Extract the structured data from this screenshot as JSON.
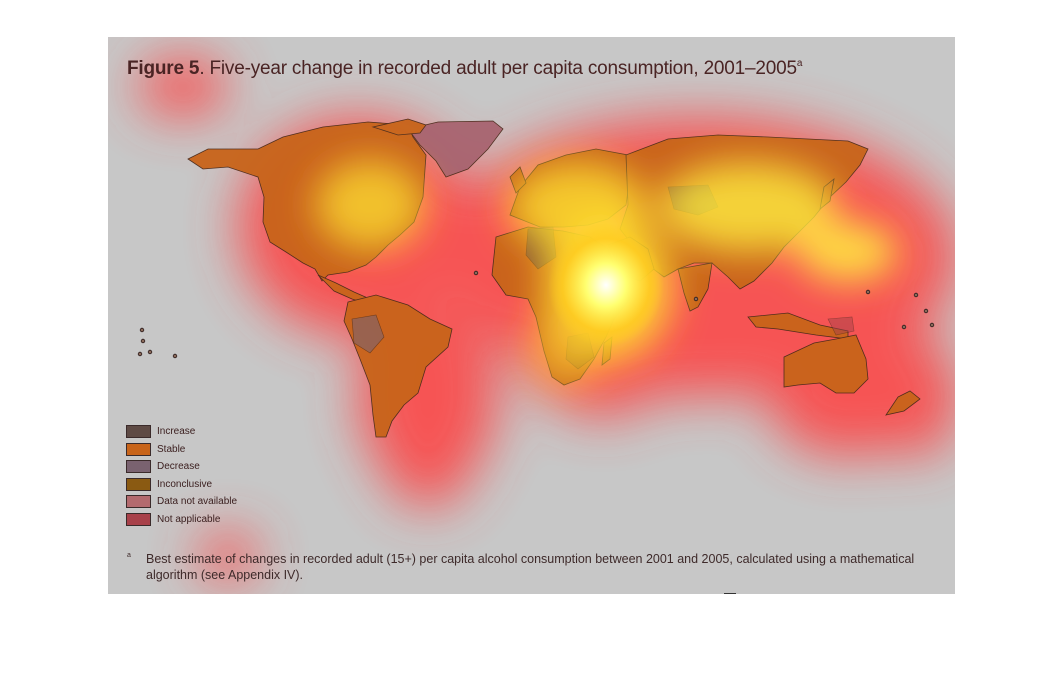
{
  "figure": {
    "title_bold": "Figure 5",
    "title_rest": ". Five-year change in recorded adult per capita consumption, 2001–2005",
    "title_superscript": "a",
    "legend": [
      {
        "label": "Increase",
        "color": "#5e4a44"
      },
      {
        "label": "Stable",
        "color": "#c8641a"
      },
      {
        "label": "Decrease",
        "color": "#7a6270"
      },
      {
        "label": "Inconclusive",
        "color": "#8a5a12"
      },
      {
        "label": "Data not available",
        "color": "#b36a6e"
      },
      {
        "label": "Not applicable",
        "color": "#a8414a"
      }
    ],
    "footnote_mark": "a",
    "footnote_text": "Best estimate of changes in recorded adult (15+) per capita alcohol consumption between 2001 and 2005, calculated using a mathematical algorithm (see Appendix IV)."
  },
  "colors": {
    "background": "#c7c7c7",
    "land_fill": "#c8641a",
    "heat_red": "#ff3030",
    "heat_yellow": "#ffff50",
    "heat_white": "#ffffff"
  }
}
